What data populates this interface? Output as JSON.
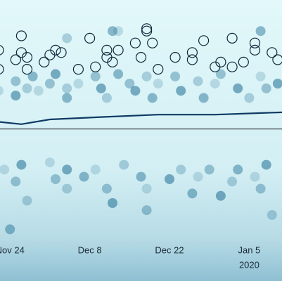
{
  "chart_data": {
    "type": "scatter",
    "xlim": [
      "2019-11-22",
      "2020-01-11"
    ],
    "ylim": [
      -50,
      50
    ],
    "xticks": [
      {
        "value": "2019-11-24",
        "label": "Nov 24"
      },
      {
        "value": "2019-12-08",
        "label": "Dec 8"
      },
      {
        "value": "2019-12-22",
        "label": "Dec 22"
      },
      {
        "value": "2020-01-05",
        "label": "Jan 5"
      }
    ],
    "xticks_year": [
      {
        "value": "2020-01-05",
        "label": "2020"
      }
    ],
    "reference_line": {
      "value": -4,
      "color": "#111111"
    },
    "series": [
      {
        "style": "open",
        "color": "#0f2a3a",
        "x": [
          "2019-11-22",
          "2019-11-22",
          "2019-11-25",
          "2019-11-26",
          "2019-11-26",
          "2019-11-27",
          "2019-11-27",
          "2019-11-30",
          "2019-12-01",
          "2019-12-02",
          "2019-12-03",
          "2019-12-06",
          "2019-12-08",
          "2019-12-09",
          "2019-12-11",
          "2019-12-11",
          "2019-12-12",
          "2019-12-13",
          "2019-12-16",
          "2019-12-17",
          "2019-12-18",
          "2019-12-18",
          "2019-12-19",
          "2019-12-20",
          "2019-12-23",
          "2019-12-26",
          "2019-12-26",
          "2019-12-28",
          "2019-12-30",
          "2019-12-31",
          "2020-01-02",
          "2020-01-02",
          "2020-01-04",
          "2020-01-06",
          "2020-01-06",
          "2020-01-09",
          "2020-01-10"
        ],
        "values": [
          29,
          21,
          25,
          28,
          35,
          26,
          21,
          24,
          27,
          29,
          28,
          21,
          34,
          22,
          26,
          29,
          24,
          29,
          32,
          26,
          38,
          37,
          32,
          21,
          26,
          28,
          25,
          33,
          22,
          24,
          22,
          34,
          24,
          32,
          29,
          28,
          25
        ]
      },
      {
        "style": "filled",
        "color": "#1f6e93",
        "x": [
          "2019-11-22",
          "2019-11-25",
          "2019-11-25",
          "2019-11-27",
          "2019-11-28",
          "2019-11-29",
          "2019-12-01",
          "2019-12-02",
          "2019-12-04",
          "2019-12-04",
          "2019-12-06",
          "2019-12-09",
          "2019-12-10",
          "2019-12-11",
          "2019-12-13",
          "2019-12-13",
          "2019-12-15",
          "2019-12-16",
          "2019-12-18",
          "2019-12-19",
          "2019-12-20",
          "2019-12-23",
          "2019-12-24",
          "2019-12-27",
          "2019-12-28",
          "2019-12-30",
          "2019-12-31",
          "2020-01-03",
          "2020-01-05",
          "2020-01-07",
          "2020-01-07",
          "2020-01-08",
          "2020-01-10",
          "2019-12-04",
          "2019-12-12"
        ],
        "values": [
          12,
          16,
          10,
          13,
          18,
          12,
          15,
          19,
          13,
          9,
          15,
          18,
          13,
          9,
          19,
          37,
          15,
          12,
          18,
          9,
          15,
          18,
          12,
          16,
          9,
          15,
          19,
          13,
          9,
          37,
          18,
          13,
          15,
          34,
          37
        ]
      },
      {
        "style": "filled",
        "color": "#1f6e93",
        "x": [
          "2019-11-23",
          "2019-11-25",
          "2019-11-26",
          "2019-11-27",
          "2019-11-24",
          "2019-12-01",
          "2019-12-02",
          "2019-12-04",
          "2019-12-04",
          "2019-12-07",
          "2019-12-09",
          "2019-12-11",
          "2019-12-12",
          "2019-12-14",
          "2019-12-17",
          "2019-12-18",
          "2019-12-18",
          "2019-12-22",
          "2019-12-24",
          "2019-12-26",
          "2019-12-27",
          "2019-12-29",
          "2019-12-31",
          "2020-01-02",
          "2020-01-03",
          "2020-01-06",
          "2020-01-07",
          "2020-01-08",
          "2020-01-09"
        ],
        "values": [
          -21,
          -26,
          -19,
          -34,
          -46,
          -18,
          -25,
          -21,
          -29,
          -24,
          -21,
          -29,
          -35,
          -19,
          -24,
          -29,
          -38,
          -25,
          -21,
          -31,
          -24,
          -21,
          -32,
          -26,
          -21,
          -24,
          -29,
          -19,
          -40
        ]
      },
      {
        "style": "line",
        "color": "#0d3a63",
        "x": [
          "2019-11-22",
          "2019-11-26",
          "2019-12-01",
          "2019-12-10",
          "2019-12-20",
          "2019-12-30",
          "2020-01-11"
        ],
        "values": [
          -1,
          -2,
          0,
          1,
          2,
          2,
          3
        ]
      }
    ]
  }
}
